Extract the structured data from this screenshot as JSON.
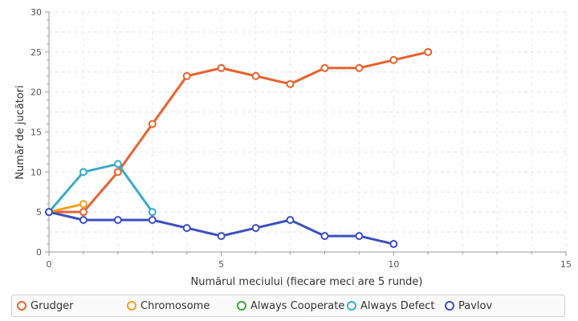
{
  "chart_data": {
    "type": "line",
    "xlabel": "Numărul meciului (fiecare meci are 5 runde)",
    "ylabel": "Număr de jucători",
    "xlim": [
      0,
      15
    ],
    "ylim": [
      0,
      30
    ],
    "xticks": [
      0,
      5,
      10,
      15
    ],
    "yticks": [
      0,
      5,
      10,
      15,
      20,
      25,
      30
    ],
    "grid": true,
    "legend_position": "bottom",
    "series": [
      {
        "name": "Grudger",
        "color": "#e8622f",
        "x": [
          0,
          1,
          2,
          3,
          4,
          5,
          6,
          7,
          8,
          9,
          10,
          11
        ],
        "y": [
          5,
          5,
          10,
          16,
          22,
          23,
          22,
          21,
          23,
          23,
          24,
          25
        ]
      },
      {
        "name": "Chromosome",
        "color": "#f0a020",
        "x": [
          0,
          1
        ],
        "y": [
          5,
          6
        ]
      },
      {
        "name": "Always Cooperate",
        "color": "#3fa33f",
        "x": [],
        "y": []
      },
      {
        "name": "Always Defect",
        "color": "#3aaac8",
        "x": [
          0,
          1,
          2,
          3
        ],
        "y": [
          5,
          10,
          11,
          5
        ]
      },
      {
        "name": "Pavlov",
        "color": "#3d4fbf",
        "x": [
          0,
          1,
          2,
          3,
          4,
          5,
          6,
          7,
          8,
          9,
          10
        ],
        "y": [
          5,
          4,
          4,
          4,
          3,
          2,
          3,
          4,
          2,
          2,
          1
        ]
      }
    ]
  }
}
